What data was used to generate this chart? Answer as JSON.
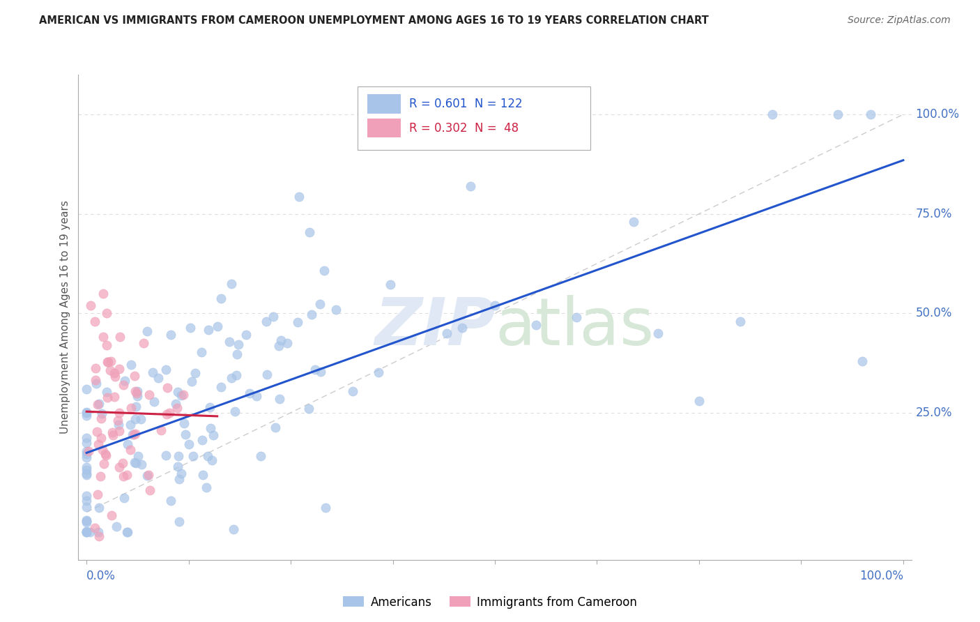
{
  "title": "AMERICAN VS IMMIGRANTS FROM CAMEROON UNEMPLOYMENT AMONG AGES 16 TO 19 YEARS CORRELATION CHART",
  "source": "Source: ZipAtlas.com",
  "ylabel": "Unemployment Among Ages 16 to 19 years",
  "ylabel_right_ticks": [
    "100.0%",
    "75.0%",
    "50.0%",
    "25.0%"
  ],
  "ylabel_right_vals": [
    1.0,
    0.75,
    0.5,
    0.25
  ],
  "americans_color": "#a8c4e8",
  "immigrants_color": "#f0a0b8",
  "americans_line_color": "#2255cc",
  "immigrants_line_color": "#cc2244",
  "diagonal_color": "#cccccc",
  "background_color": "#ffffff",
  "R_american": 0.601,
  "N_american": 122,
  "R_immigrant": 0.302,
  "N_immigrant": 48,
  "watermark_color": "#e0e8f5",
  "title_color": "#222222",
  "axis_label_color": "#4472c4",
  "ylabel_color": "#555555",
  "grid_color": "#dddddd"
}
